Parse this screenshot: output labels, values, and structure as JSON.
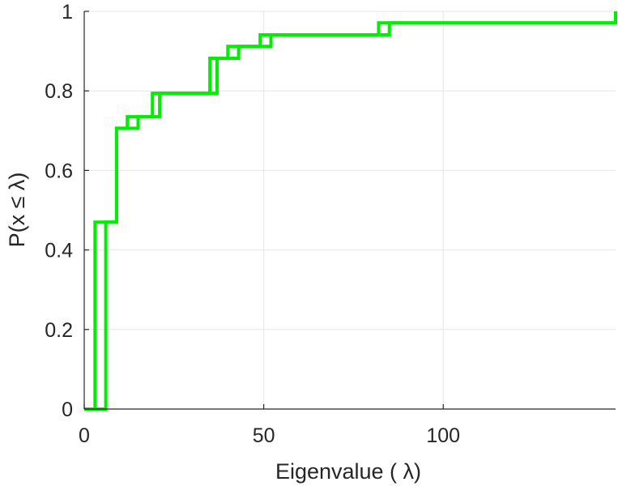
{
  "chart_data": {
    "type": "line",
    "step": true,
    "xlabel": "Eigenvalue (  λ)",
    "ylabel": "P(x ≤ λ)",
    "xlim": [
      0,
      148
    ],
    "ylim": [
      0,
      1
    ],
    "xticks": [
      0,
      50,
      100
    ],
    "yticks": [
      0,
      0.2,
      0.4,
      0.6,
      0.8,
      1
    ],
    "xtick_labels": [
      "0",
      "50",
      "100"
    ],
    "ytick_labels": [
      "0",
      "0.2",
      "0.4",
      "0.6",
      "0.8",
      "1"
    ],
    "grid": true,
    "color": "#00ee00",
    "series": [
      {
        "x": [
          0,
          3,
          9,
          12,
          19,
          35,
          40,
          49,
          82,
          148
        ],
        "y": [
          0,
          0.47,
          0.706,
          0.735,
          0.794,
          0.882,
          0.912,
          0.941,
          0.971,
          1
        ]
      },
      {
        "x": [
          0,
          6,
          9,
          15,
          21,
          37,
          43,
          52,
          85,
          148
        ],
        "y": [
          0,
          0.47,
          0.706,
          0.735,
          0.794,
          0.882,
          0.912,
          0.941,
          0.971,
          1
        ]
      }
    ]
  }
}
